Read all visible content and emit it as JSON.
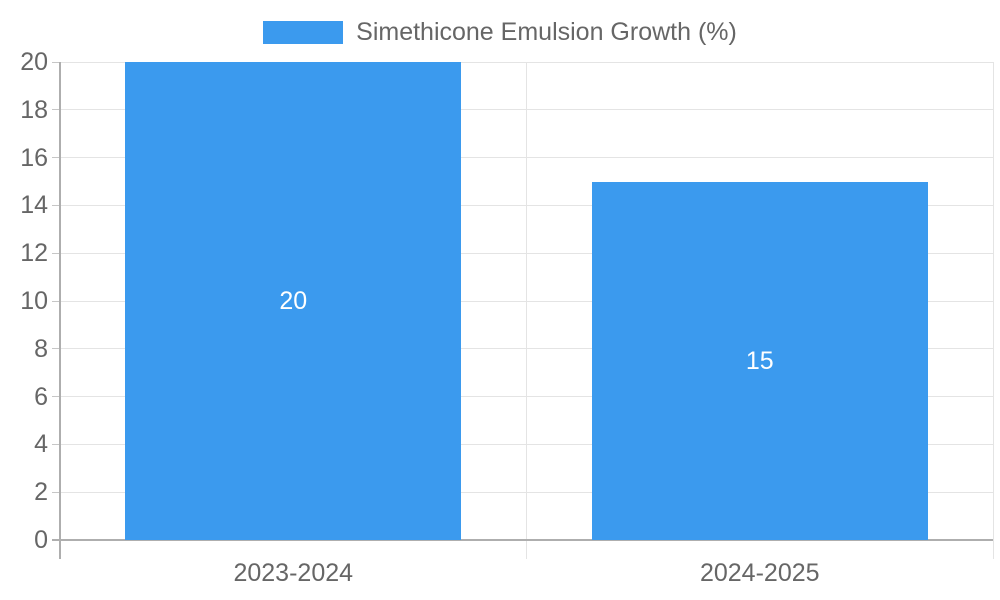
{
  "chart_data": {
    "type": "bar",
    "title": "",
    "legend": "Simethicone Emulsion Growth (%)",
    "categories": [
      "2023-2024",
      "2024-2025"
    ],
    "values": [
      20,
      15
    ],
    "data_labels": [
      "20",
      "15"
    ],
    "xlabel": "",
    "ylabel": "",
    "ylim": [
      0,
      20
    ],
    "ytick_step": 2,
    "ytick_labels": [
      "0",
      "2",
      "4",
      "6",
      "8",
      "10",
      "12",
      "14",
      "16",
      "18",
      "20"
    ],
    "grid": true,
    "legend_position": "top-center",
    "colors": {
      "bar": "#3B9AEE",
      "grid": "#E4E4E4",
      "axis": "#AEAEAE",
      "tick": "#C6C6C6",
      "text": "#666666",
      "data_label": "#FFFFFF",
      "background": "#FFFFFF"
    }
  }
}
